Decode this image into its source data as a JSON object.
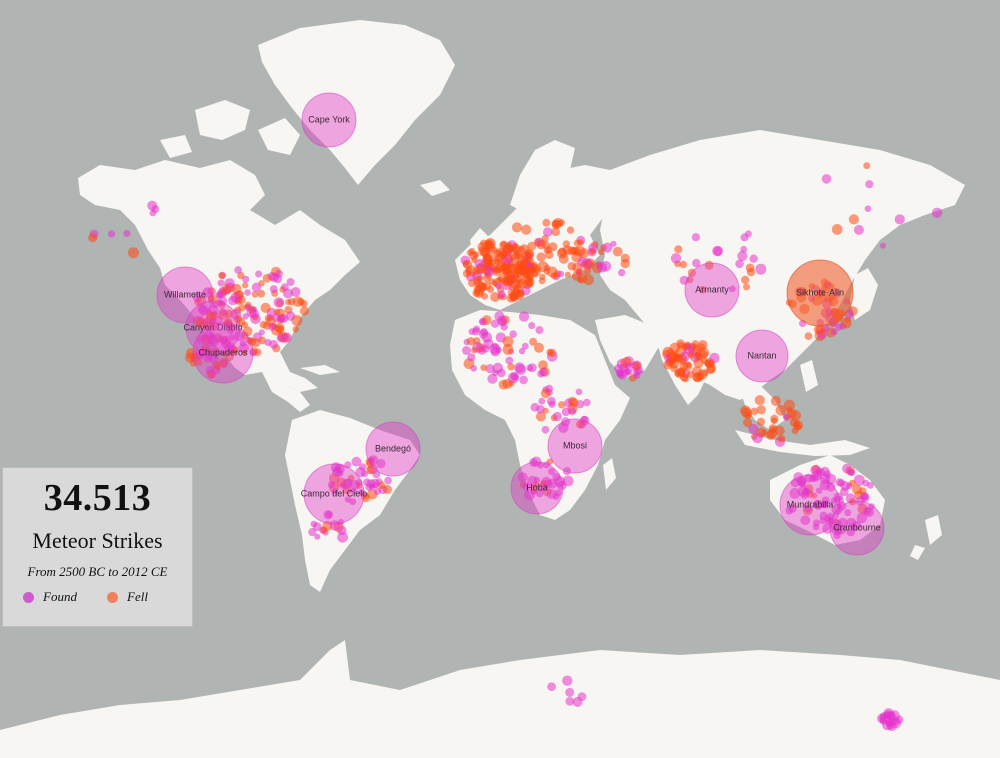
{
  "colors": {
    "ocean": "#b0b4b3",
    "land": "#f8f6f2",
    "found": "#e633cc",
    "fell": "#ff4a12"
  },
  "legend": {
    "count": "34.513",
    "title": "Meteor Strikes",
    "subtitle": "From 2500 BC to 2012 CE",
    "items": [
      {
        "label": "Found",
        "color": "#d05ad0"
      },
      {
        "label": "Fell",
        "color": "#f0805a"
      }
    ]
  },
  "large_meteorites": [
    {
      "name": "Cape York",
      "kind": "found"
    },
    {
      "name": "Willamette",
      "kind": "found"
    },
    {
      "name": "Canyon Diablo",
      "kind": "found"
    },
    {
      "name": "Chupaderos",
      "kind": "found"
    },
    {
      "name": "Bendegó",
      "kind": "found"
    },
    {
      "name": "Campo del Cielo",
      "kind": "found"
    },
    {
      "name": "Hoba",
      "kind": "found"
    },
    {
      "name": "Mbosi",
      "kind": "found"
    },
    {
      "name": "Armanty",
      "kind": "found"
    },
    {
      "name": "Sikhote-Alin",
      "kind": "fell"
    },
    {
      "name": "Nantan",
      "kind": "found"
    },
    {
      "name": "Mundrabilla",
      "kind": "found"
    },
    {
      "name": "Cranbourne",
      "kind": "found"
    }
  ]
}
